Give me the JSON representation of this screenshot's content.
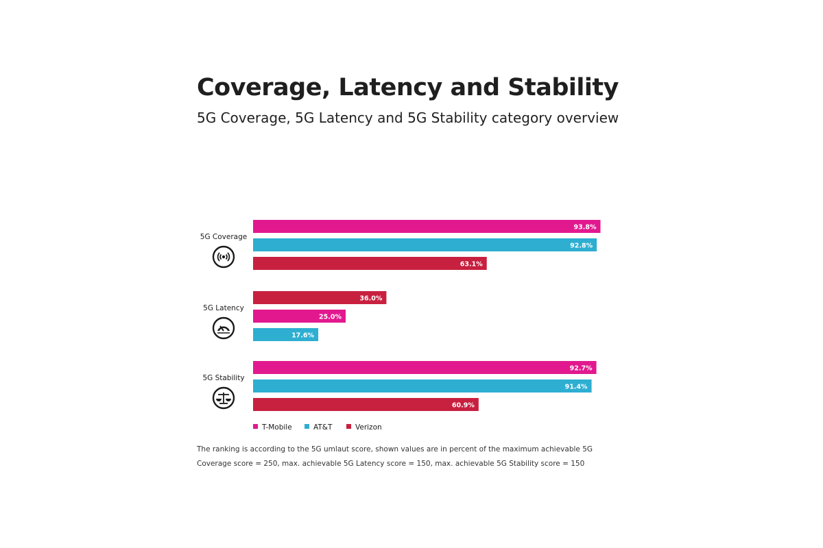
{
  "title": "Coverage, Latency and Stability",
  "subtitle": "5G Coverage, 5G Latency and 5G Stability category overview",
  "colors": {
    "T-Mobile": "#e2198e",
    "AT&T": "#2eaed1",
    "Verizon": "#c8203f"
  },
  "chart_data": {
    "type": "bar",
    "orientation": "horizontal",
    "xlim": [
      0,
      100
    ],
    "unit": "%",
    "grid": false,
    "legend_position": "bottom-left",
    "groups": [
      {
        "label": "5G Coverage",
        "icon": "signal-broadcast-icon",
        "bars": [
          {
            "series": "T-Mobile",
            "value": 93.8,
            "label": "93.8%"
          },
          {
            "series": "AT&T",
            "value": 92.8,
            "label": "92.8%"
          },
          {
            "series": "Verizon",
            "value": 63.1,
            "label": "63.1%"
          }
        ]
      },
      {
        "label": "5G Latency",
        "icon": "speedometer-icon",
        "bars": [
          {
            "series": "Verizon",
            "value": 36.0,
            "label": "36.0%"
          },
          {
            "series": "T-Mobile",
            "value": 25.0,
            "label": "25.0%"
          },
          {
            "series": "AT&T",
            "value": 17.6,
            "label": "17.6%"
          }
        ]
      },
      {
        "label": "5G Stability",
        "icon": "balance-scale-icon",
        "bars": [
          {
            "series": "T-Mobile",
            "value": 92.7,
            "label": "92.7%"
          },
          {
            "series": "AT&T",
            "value": 91.4,
            "label": "91.4%"
          },
          {
            "series": "Verizon",
            "value": 60.9,
            "label": "60.9%"
          }
        ]
      }
    ],
    "legend": [
      "T-Mobile",
      "AT&T",
      "Verizon"
    ]
  },
  "footnote": "The ranking is according to the 5G umlaut score, shown values are in percent of the maximum achievable 5G Coverage score = 250, max. achievable 5G Latency score = 150, max. achievable 5G Stability score = 150"
}
